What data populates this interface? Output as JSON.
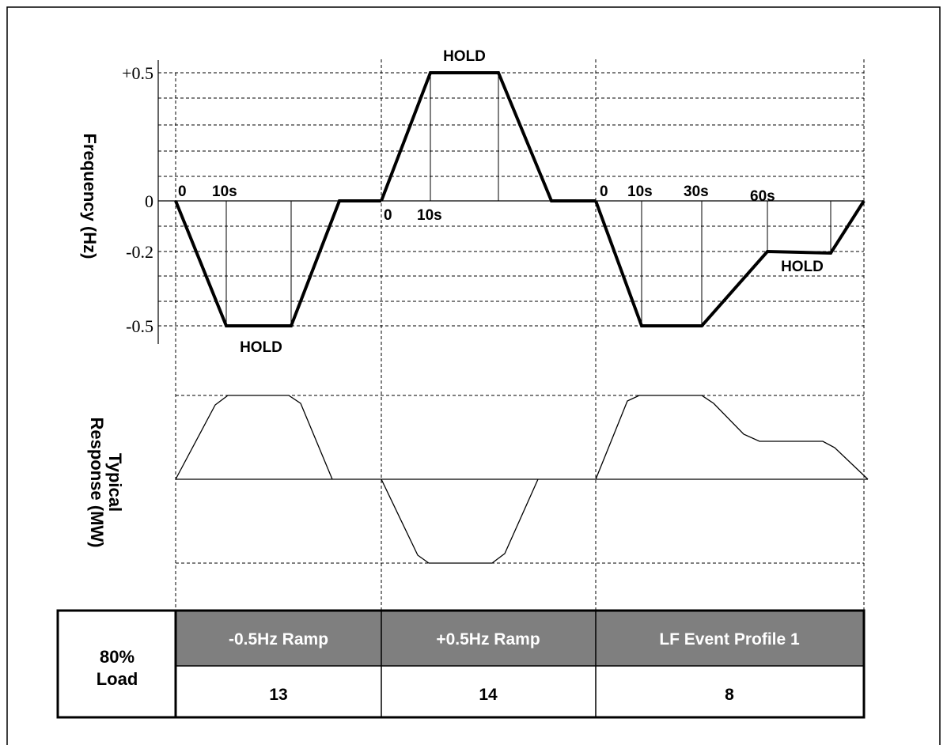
{
  "axes": {
    "frequency_label": "Frequency (Hz)",
    "response_label_line1": "Typical",
    "response_label_line2": "Response (MW)",
    "ticks": [
      "+0.5",
      "0",
      "-0.2",
      "-0.5"
    ]
  },
  "annotations": {
    "hold_top": "HOLD",
    "hold_left": "HOLD",
    "hold_right": "HOLD",
    "p1_t0": "0",
    "p1_t10": "10s",
    "p2_t0": "0",
    "p2_t10": "10s",
    "p3_t0": "0",
    "p3_t10": "10s",
    "p3_t30": "30s",
    "p3_t60": "60s"
  },
  "table": {
    "row_label_line1": "80%",
    "row_label_line2": "Load",
    "headers": [
      "-0.5Hz Ramp",
      "+0.5Hz Ramp",
      "LF Event Profile 1"
    ],
    "values": [
      "13",
      "14",
      "8"
    ]
  },
  "colors": {
    "line": "#000000",
    "header_fill": "#7f7f7f",
    "header_text": "#ffffff",
    "background": "#ffffff"
  }
}
